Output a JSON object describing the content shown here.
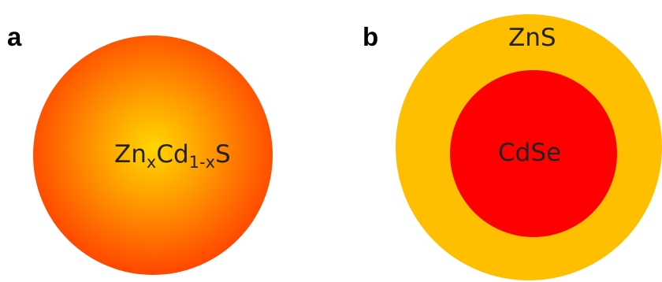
{
  "panels": [
    {
      "label": "a",
      "formula": {
        "el1": "Zn",
        "sub1": "x",
        "el2": "Cd",
        "sub2": "1-x",
        "el3": "S"
      },
      "colors": {
        "center": "#ffd500",
        "edge": "#ff2000"
      }
    },
    {
      "label": "b",
      "shell": {
        "label": "ZnS",
        "color": "#fdbf00"
      },
      "core": {
        "label": "CdSe",
        "color": "#fe0000"
      }
    }
  ]
}
